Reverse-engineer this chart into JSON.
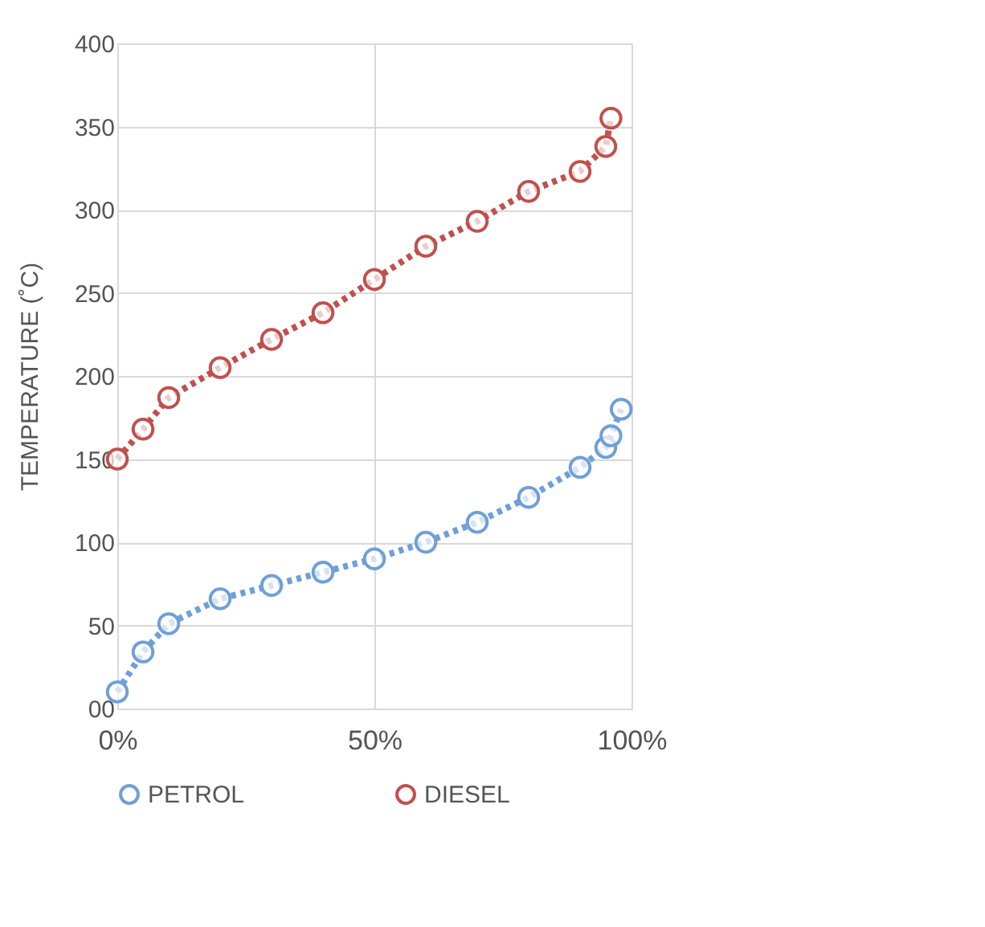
{
  "chart_data": {
    "type": "line",
    "ylabel": "TEMPERATURE (˚C)",
    "xlim": [
      0,
      100
    ],
    "xticks": [
      {
        "value": 0,
        "label": "0%"
      },
      {
        "value": 50,
        "label": "50%"
      },
      {
        "value": 100,
        "label": "100%"
      }
    ],
    "ylim": [
      0,
      400
    ],
    "yticks": [
      {
        "value": 0,
        "label": "00"
      },
      50,
      100,
      150,
      200,
      250,
      300,
      350,
      400
    ],
    "grid": true,
    "legend": "bottom",
    "marker": "circle",
    "line_style": "dotted",
    "series": [
      {
        "name": "PETROL",
        "color": "#6f9fd8",
        "x": [
          0,
          5,
          10,
          20,
          30,
          40,
          50,
          60,
          70,
          80,
          90,
          95,
          96,
          98
        ],
        "values": [
          10,
          34,
          51,
          66,
          74,
          82,
          90,
          100,
          112,
          127,
          145,
          157,
          164,
          180
        ]
      },
      {
        "name": "DIESEL",
        "color": "#c0504d",
        "x": [
          0,
          5,
          10,
          20,
          30,
          40,
          50,
          60,
          70,
          80,
          90,
          95,
          96
        ],
        "values": [
          150,
          168,
          187,
          205,
          222,
          238,
          258,
          278,
          293,
          311,
          323,
          338,
          355
        ]
      }
    ]
  }
}
